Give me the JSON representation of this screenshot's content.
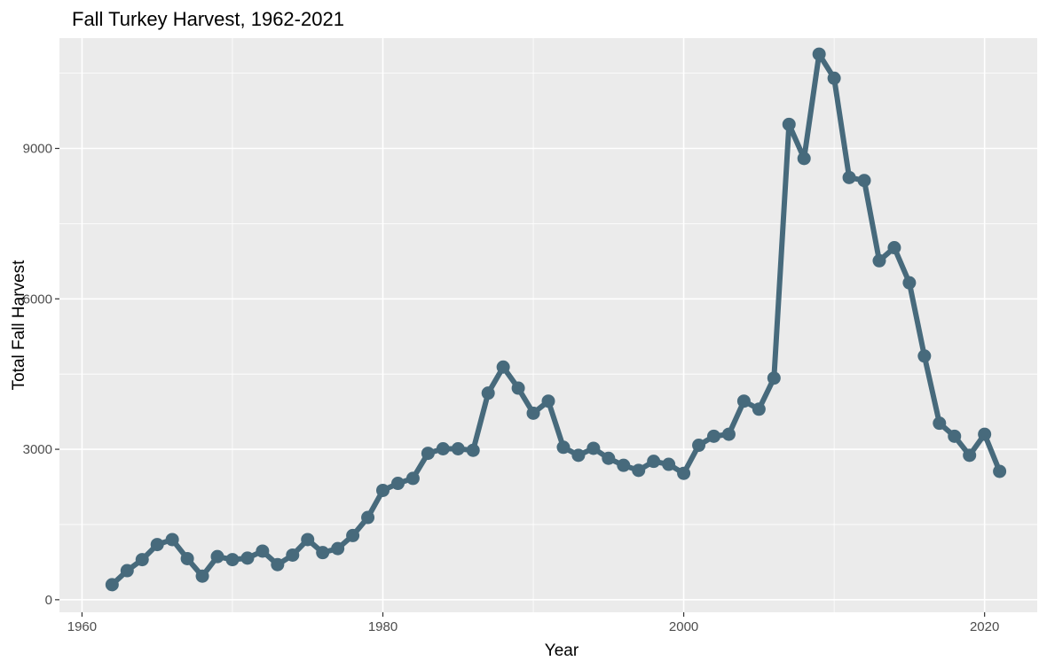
{
  "chart_data": {
    "type": "line",
    "title": "Fall Turkey Harvest, 1962-2021",
    "xlabel": "Year",
    "ylabel": "Total Fall Harvest",
    "xlim": [
      1958.5,
      2023.5
    ],
    "ylim": [
      -250,
      11200
    ],
    "x_ticks": [
      1960,
      1980,
      2000,
      2020
    ],
    "y_ticks": [
      0,
      3000,
      6000,
      9000
    ],
    "grid": true,
    "legend": "none",
    "colors": {
      "panel": "#ebebeb",
      "grid": "#ffffff",
      "series": "#476a7c",
      "tick": "#333333"
    },
    "series": [
      {
        "x": [
          1962,
          1963,
          1964,
          1965,
          1966,
          1967,
          1968,
          1969,
          1970,
          1971,
          1972,
          1973,
          1974,
          1975,
          1976,
          1977,
          1978,
          1979,
          1980,
          1981,
          1982,
          1983,
          1984,
          1985,
          1986,
          1987,
          1988,
          1989,
          1990,
          1991,
          1992,
          1993,
          1994,
          1995,
          1996,
          1997,
          1998,
          1999,
          2000,
          2001,
          2002,
          2003,
          2004,
          2005,
          2006,
          2007,
          2008,
          2009,
          2010,
          2011,
          2012,
          2013,
          2014,
          2015,
          2016,
          2017,
          2018,
          2019,
          2020,
          2021
        ],
        "values": [
          300,
          580,
          800,
          1100,
          1200,
          820,
          470,
          860,
          800,
          830,
          970,
          700,
          890,
          1200,
          940,
          1020,
          1280,
          1640,
          2180,
          2320,
          2420,
          2920,
          3010,
          3010,
          2980,
          4120,
          4640,
          4220,
          3720,
          3960,
          3040,
          2880,
          3020,
          2820,
          2680,
          2580,
          2760,
          2700,
          2520,
          3080,
          3260,
          3300,
          3960,
          3800,
          4420,
          9480,
          8800,
          10880,
          10400,
          8420,
          8360,
          6760,
          7020,
          6320,
          4860,
          3520,
          3260,
          2880,
          3300,
          2560
        ]
      }
    ]
  }
}
